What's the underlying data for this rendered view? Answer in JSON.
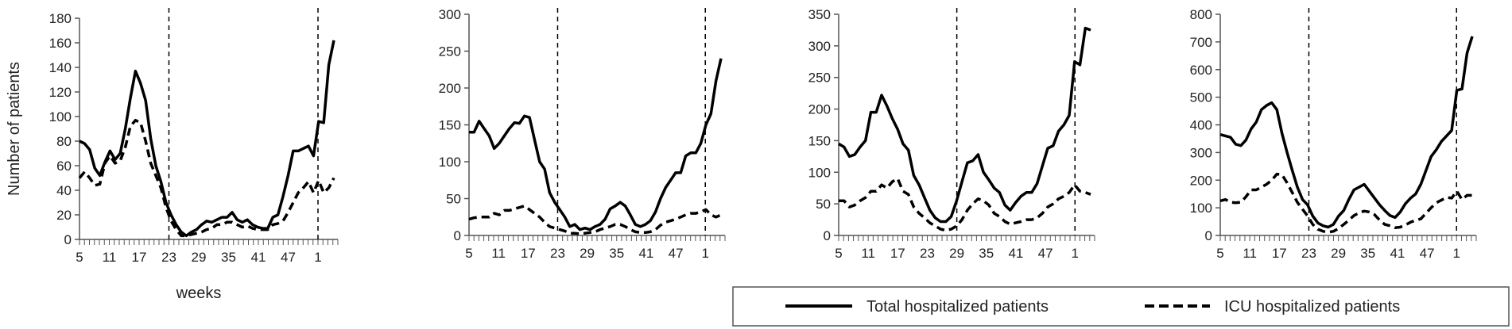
{
  "chart_data": [
    {
      "type": "line",
      "ylabel": "Number of patients",
      "xlabel": "weeks",
      "ylim": [
        0,
        180
      ],
      "yticks": [
        0,
        20,
        40,
        60,
        80,
        100,
        120,
        140,
        160,
        180
      ],
      "xtick_labels": [
        "5",
        "11",
        "17",
        "23",
        "29",
        "35",
        "41",
        "47",
        "1"
      ],
      "vlines": [
        "23",
        "1"
      ],
      "series": [
        {
          "name": "Total hospitalized patients",
          "style": "solid",
          "values": [
            80,
            78,
            73,
            58,
            52,
            63,
            72,
            65,
            70,
            90,
            115,
            137,
            127,
            113,
            82,
            60,
            47,
            30,
            20,
            12,
            6,
            3,
            6,
            8,
            12,
            15,
            14,
            16,
            18,
            18,
            22,
            16,
            14,
            16,
            12,
            10,
            9,
            9,
            18,
            20,
            35,
            52,
            72,
            72,
            74,
            76,
            68,
            96,
            95,
            142,
            162
          ]
        },
        {
          "name": "ICU hospitalized patients",
          "style": "dashed",
          "values": [
            50,
            55,
            50,
            44,
            45,
            62,
            68,
            62,
            64,
            75,
            92,
            97,
            95,
            80,
            62,
            52,
            42,
            26,
            15,
            8,
            3,
            3,
            4,
            5,
            6,
            8,
            9,
            12,
            12,
            14,
            14,
            12,
            10,
            11,
            9,
            8,
            8,
            8,
            12,
            13,
            15,
            22,
            30,
            38,
            42,
            47,
            38,
            48,
            38,
            42,
            50
          ]
        }
      ]
    },
    {
      "type": "line",
      "ylim": [
        0,
        300
      ],
      "yticks": [
        0,
        50,
        100,
        150,
        200,
        250,
        300
      ],
      "xtick_labels": [
        "5",
        "11",
        "17",
        "23",
        "29",
        "35",
        "41",
        "47",
        "1"
      ],
      "vlines": [
        "23",
        "1"
      ],
      "series": [
        {
          "name": "Total hospitalized patients",
          "style": "solid",
          "values": [
            140,
            140,
            155,
            145,
            135,
            118,
            125,
            135,
            145,
            153,
            152,
            162,
            160,
            130,
            100,
            90,
            58,
            45,
            35,
            25,
            12,
            15,
            8,
            10,
            8,
            12,
            15,
            22,
            36,
            40,
            45,
            40,
            28,
            15,
            12,
            15,
            20,
            32,
            50,
            65,
            75,
            85,
            85,
            108,
            112,
            112,
            125,
            150,
            165,
            210,
            240
          ]
        },
        {
          "name": "ICU hospitalized patients",
          "style": "dashed",
          "values": [
            22,
            24,
            25,
            25,
            25,
            30,
            28,
            34,
            34,
            36,
            38,
            40,
            35,
            30,
            25,
            18,
            12,
            10,
            8,
            6,
            3,
            3,
            2,
            3,
            4,
            5,
            8,
            10,
            12,
            15,
            15,
            12,
            8,
            5,
            4,
            4,
            5,
            8,
            14,
            18,
            20,
            22,
            25,
            28,
            30,
            30,
            32,
            35,
            28,
            25,
            28
          ]
        }
      ]
    },
    {
      "type": "line",
      "ylim": [
        0,
        350
      ],
      "yticks": [
        0,
        50,
        100,
        150,
        200,
        250,
        300,
        350
      ],
      "xtick_labels": [
        "5",
        "11",
        "17",
        "23",
        "29",
        "35",
        "41",
        "47",
        "1"
      ],
      "vlines": [
        "29",
        "1"
      ],
      "series": [
        {
          "name": "Total hospitalized patients",
          "style": "solid",
          "values": [
            145,
            140,
            125,
            128,
            140,
            150,
            195,
            195,
            222,
            205,
            185,
            168,
            145,
            135,
            95,
            80,
            60,
            40,
            28,
            22,
            22,
            30,
            55,
            85,
            115,
            118,
            128,
            100,
            88,
            75,
            68,
            48,
            40,
            52,
            62,
            68,
            68,
            82,
            110,
            138,
            142,
            165,
            175,
            190,
            275,
            270,
            328,
            325
          ]
        },
        {
          "name": "ICU hospitalized patients",
          "style": "dashed",
          "values": [
            55,
            55,
            45,
            48,
            55,
            60,
            70,
            70,
            80,
            75,
            85,
            90,
            70,
            65,
            45,
            35,
            28,
            20,
            15,
            10,
            8,
            10,
            15,
            25,
            40,
            50,
            58,
            55,
            48,
            35,
            30,
            22,
            18,
            20,
            22,
            25,
            25,
            28,
            35,
            45,
            50,
            58,
            62,
            68,
            80,
            70,
            68,
            65
          ]
        }
      ]
    },
    {
      "type": "line",
      "ylim": [
        0,
        800
      ],
      "yticks": [
        0,
        100,
        200,
        300,
        400,
        500,
        600,
        700,
        800
      ],
      "xtick_labels": [
        "5",
        "11",
        "17",
        "23",
        "29",
        "35",
        "41",
        "47",
        "1"
      ],
      "vlines": [
        "23",
        "1"
      ],
      "series": [
        {
          "name": "Total hospitalized patients",
          "style": "solid",
          "values": [
            365,
            360,
            355,
            330,
            325,
            345,
            385,
            410,
            455,
            470,
            480,
            455,
            370,
            300,
            235,
            175,
            130,
            110,
            70,
            45,
            35,
            30,
            40,
            70,
            90,
            130,
            165,
            175,
            185,
            160,
            135,
            110,
            90,
            72,
            65,
            85,
            115,
            135,
            150,
            185,
            235,
            285,
            310,
            340,
            360,
            380,
            525,
            530,
            660,
            720
          ]
        },
        {
          "name": "ICU hospitalized patients",
          "style": "dashed",
          "values": [
            125,
            130,
            120,
            118,
            120,
            140,
            165,
            165,
            175,
            185,
            200,
            222,
            220,
            190,
            155,
            120,
            95,
            70,
            40,
            22,
            15,
            12,
            15,
            25,
            40,
            55,
            72,
            82,
            88,
            85,
            75,
            55,
            40,
            35,
            28,
            30,
            38,
            48,
            55,
            60,
            80,
            100,
            118,
            128,
            138,
            135,
            160,
            130,
            145,
            145
          ]
        }
      ]
    }
  ],
  "legend": {
    "items": [
      {
        "label": "Total hospitalized patients",
        "style": "solid"
      },
      {
        "label": "ICU hospitalized patients",
        "style": "dashed"
      }
    ]
  },
  "colors": {
    "line": "#000000",
    "axis": "#555555",
    "text": "#222222"
  }
}
